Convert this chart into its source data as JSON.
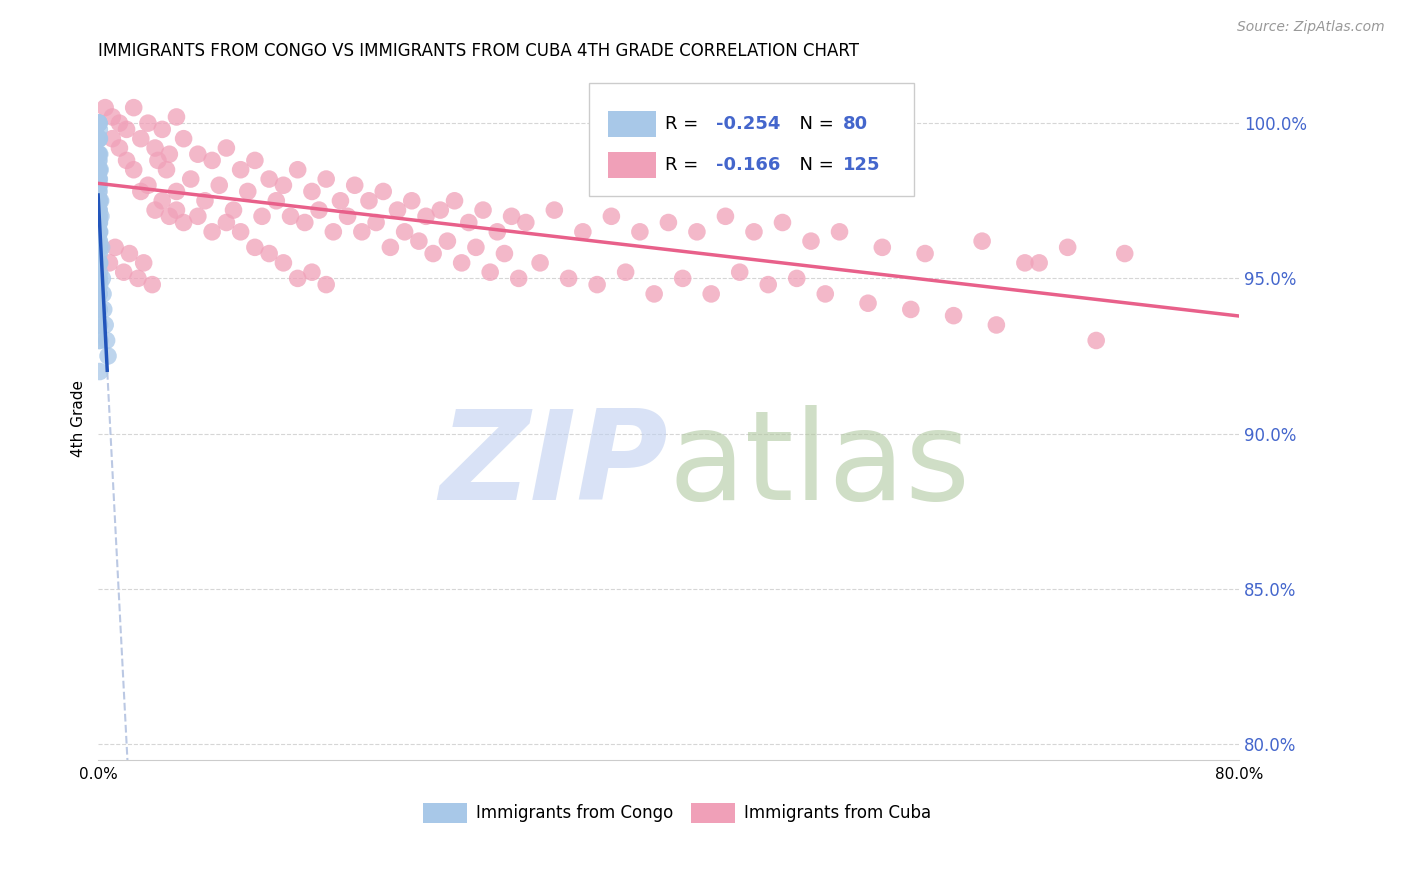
{
  "title": "IMMIGRANTS FROM CONGO VS IMMIGRANTS FROM CUBA 4TH GRADE CORRELATION CHART",
  "source": "Source: ZipAtlas.com",
  "ylabel": "4th Grade",
  "xlim": [
    0.0,
    80.0
  ],
  "ylim": [
    79.5,
    101.5
  ],
  "congo_color": "#a8c8e8",
  "cuba_color": "#f0a0b8",
  "congo_line_color": "#2255bb",
  "cuba_line_color": "#e8608a",
  "watermark_zip_color": "#c0d0f0",
  "watermark_atlas_color": "#b0c8a0",
  "grid_color": "#cccccc",
  "right_axis_color": "#4466cc",
  "background_color": "#ffffff",
  "congo_points_x": [
    0.02,
    0.03,
    0.04,
    0.05,
    0.06,
    0.07,
    0.08,
    0.09,
    0.1,
    0.12,
    0.15,
    0.18,
    0.2,
    0.25,
    0.3,
    0.35,
    0.4,
    0.5,
    0.6,
    0.7,
    0.02,
    0.03,
    0.04,
    0.05,
    0.06,
    0.07,
    0.08,
    0.09,
    0.1,
    0.12,
    0.02,
    0.03,
    0.04,
    0.05,
    0.06,
    0.07,
    0.08,
    0.09,
    0.1,
    0.12,
    0.02,
    0.03,
    0.04,
    0.05,
    0.06,
    0.07,
    0.08,
    0.09,
    0.1,
    0.12,
    0.02,
    0.03,
    0.04,
    0.05,
    0.06,
    0.07,
    0.08,
    0.09,
    0.1,
    0.12,
    0.02,
    0.03,
    0.04,
    0.05,
    0.06,
    0.07,
    0.08,
    0.09,
    0.1,
    0.12,
    0.02,
    0.03,
    0.04,
    0.05,
    0.06,
    0.07,
    0.08,
    0.09,
    0.1,
    0.12
  ],
  "congo_points_y": [
    100.0,
    100.0,
    100.0,
    100.0,
    100.0,
    100.0,
    99.5,
    99.8,
    99.5,
    99.0,
    98.5,
    97.5,
    97.0,
    96.0,
    95.0,
    94.5,
    94.0,
    93.5,
    93.0,
    92.5,
    99.5,
    99.5,
    99.0,
    99.0,
    98.8,
    98.5,
    98.5,
    98.2,
    98.0,
    97.5,
    99.0,
    98.8,
    98.5,
    98.2,
    97.8,
    97.5,
    97.2,
    97.0,
    96.8,
    96.5,
    98.5,
    98.2,
    97.8,
    97.5,
    97.2,
    96.8,
    96.5,
    96.2,
    96.0,
    95.5,
    98.0,
    97.5,
    97.2,
    96.8,
    96.5,
    96.2,
    95.8,
    95.5,
    95.2,
    94.8,
    97.5,
    97.0,
    96.5,
    96.0,
    95.5,
    95.0,
    94.5,
    94.0,
    93.5,
    93.0,
    97.0,
    96.5,
    96.0,
    95.5,
    95.0,
    94.5,
    94.0,
    93.5,
    93.0,
    92.0
  ],
  "cuba_points_x": [
    0.5,
    1.0,
    1.5,
    2.0,
    2.5,
    3.0,
    3.5,
    4.0,
    4.5,
    5.0,
    5.5,
    6.0,
    7.0,
    8.0,
    9.0,
    10.0,
    11.0,
    12.0,
    13.0,
    14.0,
    15.0,
    16.0,
    17.0,
    18.0,
    19.0,
    20.0,
    21.0,
    22.0,
    23.0,
    24.0,
    25.0,
    26.0,
    27.0,
    28.0,
    29.0,
    30.0,
    32.0,
    34.0,
    36.0,
    38.0,
    40.0,
    42.0,
    44.0,
    46.0,
    48.0,
    50.0,
    52.0,
    55.0,
    58.0,
    62.0,
    65.0,
    68.0,
    72.0,
    0.8,
    1.2,
    1.8,
    2.2,
    2.8,
    3.2,
    3.8,
    4.2,
    4.8,
    5.5,
    6.5,
    7.5,
    8.5,
    9.5,
    10.5,
    11.5,
    12.5,
    13.5,
    14.5,
    15.5,
    16.5,
    17.5,
    18.5,
    19.5,
    20.5,
    21.5,
    22.5,
    23.5,
    24.5,
    25.5,
    26.5,
    27.5,
    28.5,
    29.5,
    31.0,
    33.0,
    35.0,
    37.0,
    39.0,
    41.0,
    43.0,
    45.0,
    47.0,
    49.0,
    51.0,
    54.0,
    57.0,
    60.0,
    63.0,
    66.0,
    70.0,
    1.0,
    1.5,
    2.0,
    2.5,
    3.0,
    3.5,
    4.0,
    4.5,
    5.0,
    5.5,
    6.0,
    7.0,
    8.0,
    9.0,
    10.0,
    11.0,
    12.0,
    13.0,
    14.0,
    15.0,
    16.0
  ],
  "cuba_points_y": [
    100.5,
    100.2,
    100.0,
    99.8,
    100.5,
    99.5,
    100.0,
    99.2,
    99.8,
    99.0,
    100.2,
    99.5,
    99.0,
    98.8,
    99.2,
    98.5,
    98.8,
    98.2,
    98.0,
    98.5,
    97.8,
    98.2,
    97.5,
    98.0,
    97.5,
    97.8,
    97.2,
    97.5,
    97.0,
    97.2,
    97.5,
    96.8,
    97.2,
    96.5,
    97.0,
    96.8,
    97.2,
    96.5,
    97.0,
    96.5,
    96.8,
    96.5,
    97.0,
    96.5,
    96.8,
    96.2,
    96.5,
    96.0,
    95.8,
    96.2,
    95.5,
    96.0,
    95.8,
    95.5,
    96.0,
    95.2,
    95.8,
    95.0,
    95.5,
    94.8,
    98.8,
    98.5,
    97.8,
    98.2,
    97.5,
    98.0,
    97.2,
    97.8,
    97.0,
    97.5,
    97.0,
    96.8,
    97.2,
    96.5,
    97.0,
    96.5,
    96.8,
    96.0,
    96.5,
    96.2,
    95.8,
    96.2,
    95.5,
    96.0,
    95.2,
    95.8,
    95.0,
    95.5,
    95.0,
    94.8,
    95.2,
    94.5,
    95.0,
    94.5,
    95.2,
    94.8,
    95.0,
    94.5,
    94.2,
    94.0,
    93.8,
    93.5,
    95.5,
    93.0,
    99.5,
    99.2,
    98.8,
    98.5,
    97.8,
    98.0,
    97.2,
    97.5,
    97.0,
    97.2,
    96.8,
    97.0,
    96.5,
    96.8,
    96.5,
    96.0,
    95.8,
    95.5,
    95.0,
    95.2,
    94.8
  ]
}
